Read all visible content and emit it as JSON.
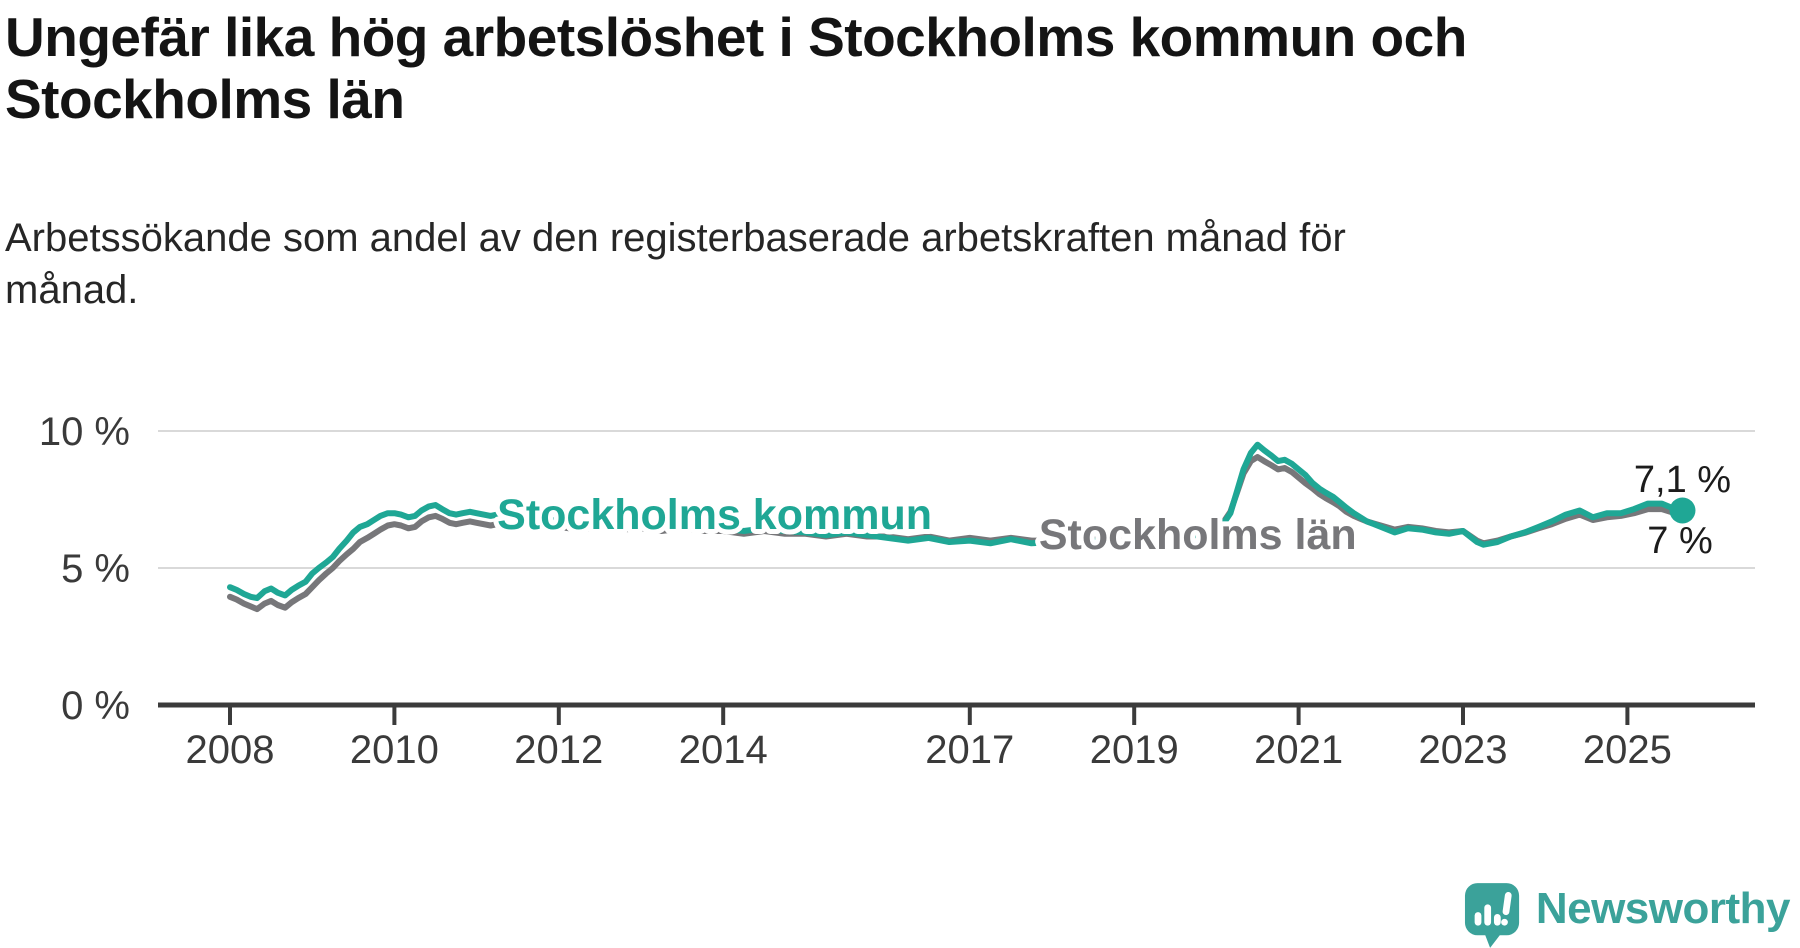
{
  "header": {
    "title_lines": [
      "Ungefär lika hög arbetslöshet i Stockholms kommun och",
      "Stockholms län"
    ],
    "subtitle_lines": [
      "Arbetssökande som andel av den registerbaserade arbetskraften månad för",
      "månad."
    ]
  },
  "logo": {
    "text": "Newsworthy",
    "color": "#3ba29a"
  },
  "chart_data": {
    "type": "line",
    "title": "Ungefär lika hög arbetslöshet i Stockholms kommun och Stockholms län",
    "subtitle": "Arbetssökande som andel av den registerbaserade arbetskraften månad för månad.",
    "xlabel": "",
    "ylabel": "",
    "ylim": [
      0,
      10
    ],
    "xlim": [
      2007.1,
      2026.5
    ],
    "grid": "horizontal",
    "legend_position": "inline-labels",
    "colors": {
      "grid": "#d9d9d9",
      "axis": "#3b3b3b",
      "kommun": "#1fa795",
      "lan": "#77777a"
    },
    "y_gridlines": [
      5,
      10
    ],
    "y_ticks": [
      {
        "value": 10,
        "label": "10 %"
      },
      {
        "value": 5,
        "label": "5 %"
      },
      {
        "value": 0,
        "label": "0 %"
      }
    ],
    "x_ticks": [
      {
        "value": 2008,
        "label": "2008"
      },
      {
        "value": 2010,
        "label": "2010"
      },
      {
        "value": 2012,
        "label": "2012"
      },
      {
        "value": 2014,
        "label": "2014"
      },
      {
        "value": 2017,
        "label": "2017"
      },
      {
        "value": 2019,
        "label": "2019"
      },
      {
        "value": 2021,
        "label": "2021"
      },
      {
        "value": 2023,
        "label": "2023"
      },
      {
        "value": 2025,
        "label": "2025"
      }
    ],
    "end_labels": [
      {
        "text": "7,1 %",
        "x": 2025.67,
        "y": 7.77,
        "anchor": "middle"
      },
      {
        "text": "7 %",
        "x": 2025.64,
        "y": 5.55,
        "anchor": "middle"
      }
    ],
    "series": [
      {
        "id": "lan",
        "name": "Stockholms län",
        "color": "#77777a",
        "end_marker": false,
        "label_pos": [
          2017.84,
          5.69
        ],
        "points": [
          [
            2008.0,
            3.95
          ],
          [
            2008.08,
            3.85
          ],
          [
            2008.17,
            3.7
          ],
          [
            2008.25,
            3.6
          ],
          [
            2008.33,
            3.5
          ],
          [
            2008.42,
            3.7
          ],
          [
            2008.5,
            3.8
          ],
          [
            2008.58,
            3.65
          ],
          [
            2008.67,
            3.55
          ],
          [
            2008.75,
            3.75
          ],
          [
            2008.83,
            3.9
          ],
          [
            2008.92,
            4.05
          ],
          [
            2009.0,
            4.3
          ],
          [
            2009.08,
            4.55
          ],
          [
            2009.17,
            4.8
          ],
          [
            2009.25,
            5.0
          ],
          [
            2009.33,
            5.25
          ],
          [
            2009.42,
            5.5
          ],
          [
            2009.5,
            5.7
          ],
          [
            2009.58,
            5.95
          ],
          [
            2009.67,
            6.1
          ],
          [
            2009.75,
            6.25
          ],
          [
            2009.83,
            6.4
          ],
          [
            2009.92,
            6.55
          ],
          [
            2010.0,
            6.6
          ],
          [
            2010.08,
            6.55
          ],
          [
            2010.17,
            6.45
          ],
          [
            2010.25,
            6.5
          ],
          [
            2010.33,
            6.7
          ],
          [
            2010.42,
            6.85
          ],
          [
            2010.5,
            6.9
          ],
          [
            2010.58,
            6.8
          ],
          [
            2010.67,
            6.65
          ],
          [
            2010.75,
            6.6
          ],
          [
            2010.83,
            6.65
          ],
          [
            2010.92,
            6.7
          ],
          [
            2011.0,
            6.65
          ],
          [
            2011.17,
            6.55
          ],
          [
            2011.33,
            6.65
          ],
          [
            2011.5,
            6.75
          ],
          [
            2011.67,
            6.55
          ],
          [
            2011.83,
            6.45
          ],
          [
            2012.0,
            6.5
          ],
          [
            2012.25,
            6.4
          ],
          [
            2012.5,
            6.5
          ],
          [
            2012.75,
            6.4
          ],
          [
            2013.0,
            6.45
          ],
          [
            2013.25,
            6.35
          ],
          [
            2013.5,
            6.45
          ],
          [
            2013.75,
            6.35
          ],
          [
            2014.0,
            6.35
          ],
          [
            2014.25,
            6.25
          ],
          [
            2014.5,
            6.35
          ],
          [
            2014.75,
            6.25
          ],
          [
            2015.0,
            6.25
          ],
          [
            2015.25,
            6.15
          ],
          [
            2015.5,
            6.25
          ],
          [
            2015.75,
            6.15
          ],
          [
            2016.0,
            6.15
          ],
          [
            2016.25,
            6.05
          ],
          [
            2016.5,
            6.15
          ],
          [
            2016.75,
            6.0
          ],
          [
            2017.0,
            6.1
          ],
          [
            2017.25,
            6.0
          ],
          [
            2017.5,
            6.1
          ],
          [
            2017.75,
            6.0
          ],
          [
            2018.0,
            6.0
          ],
          [
            2018.25,
            5.95
          ],
          [
            2018.5,
            6.05
          ],
          [
            2018.75,
            5.95
          ],
          [
            2019.0,
            6.05
          ],
          [
            2019.25,
            6.05
          ],
          [
            2019.5,
            6.2
          ],
          [
            2019.75,
            6.25
          ],
          [
            2020.0,
            6.45
          ],
          [
            2020.08,
            6.65
          ],
          [
            2020.17,
            7.05
          ],
          [
            2020.25,
            7.75
          ],
          [
            2020.33,
            8.45
          ],
          [
            2020.42,
            8.9
          ],
          [
            2020.5,
            9.05
          ],
          [
            2020.58,
            8.9
          ],
          [
            2020.67,
            8.75
          ],
          [
            2020.75,
            8.6
          ],
          [
            2020.83,
            8.65
          ],
          [
            2020.92,
            8.5
          ],
          [
            2021.0,
            8.3
          ],
          [
            2021.08,
            8.1
          ],
          [
            2021.17,
            7.9
          ],
          [
            2021.25,
            7.7
          ],
          [
            2021.33,
            7.55
          ],
          [
            2021.42,
            7.4
          ],
          [
            2021.5,
            7.25
          ],
          [
            2021.58,
            7.05
          ],
          [
            2021.67,
            6.9
          ],
          [
            2021.75,
            6.8
          ],
          [
            2021.83,
            6.7
          ],
          [
            2021.92,
            6.62
          ],
          [
            2022.0,
            6.55
          ],
          [
            2022.17,
            6.4
          ],
          [
            2022.33,
            6.5
          ],
          [
            2022.5,
            6.45
          ],
          [
            2022.67,
            6.35
          ],
          [
            2022.83,
            6.3
          ],
          [
            2023.0,
            6.35
          ],
          [
            2023.17,
            6.0
          ],
          [
            2023.25,
            5.9
          ],
          [
            2023.42,
            6.0
          ],
          [
            2023.58,
            6.15
          ],
          [
            2023.75,
            6.28
          ],
          [
            2023.92,
            6.45
          ],
          [
            2024.08,
            6.6
          ],
          [
            2024.25,
            6.8
          ],
          [
            2024.42,
            6.95
          ],
          [
            2024.58,
            6.75
          ],
          [
            2024.75,
            6.85
          ],
          [
            2024.92,
            6.9
          ],
          [
            2025.08,
            7.0
          ],
          [
            2025.25,
            7.15
          ],
          [
            2025.42,
            7.15
          ],
          [
            2025.58,
            7.0
          ],
          [
            2025.67,
            7.0
          ]
        ],
        "latest_value_label": "7 %"
      },
      {
        "id": "kommun",
        "name": "Stockholms kommun",
        "color": "#1fa795",
        "end_marker": true,
        "label_pos": [
          2011.25,
          6.42
        ],
        "points": [
          [
            2008.0,
            4.3
          ],
          [
            2008.08,
            4.2
          ],
          [
            2008.17,
            4.05
          ],
          [
            2008.25,
            3.95
          ],
          [
            2008.33,
            3.9
          ],
          [
            2008.42,
            4.15
          ],
          [
            2008.5,
            4.25
          ],
          [
            2008.58,
            4.1
          ],
          [
            2008.67,
            4.0
          ],
          [
            2008.75,
            4.2
          ],
          [
            2008.83,
            4.35
          ],
          [
            2008.92,
            4.5
          ],
          [
            2009.0,
            4.8
          ],
          [
            2009.08,
            5.0
          ],
          [
            2009.17,
            5.2
          ],
          [
            2009.25,
            5.4
          ],
          [
            2009.33,
            5.7
          ],
          [
            2009.42,
            6.0
          ],
          [
            2009.5,
            6.3
          ],
          [
            2009.58,
            6.5
          ],
          [
            2009.67,
            6.6
          ],
          [
            2009.75,
            6.75
          ],
          [
            2009.83,
            6.9
          ],
          [
            2009.92,
            7.0
          ],
          [
            2010.0,
            7.0
          ],
          [
            2010.08,
            6.95
          ],
          [
            2010.17,
            6.85
          ],
          [
            2010.25,
            6.9
          ],
          [
            2010.33,
            7.1
          ],
          [
            2010.42,
            7.25
          ],
          [
            2010.5,
            7.3
          ],
          [
            2010.58,
            7.15
          ],
          [
            2010.67,
            7.0
          ],
          [
            2010.75,
            6.95
          ],
          [
            2010.83,
            7.0
          ],
          [
            2010.92,
            7.05
          ],
          [
            2011.0,
            7.0
          ],
          [
            2011.17,
            6.9
          ],
          [
            2011.33,
            7.0
          ],
          [
            2011.5,
            7.1
          ],
          [
            2011.67,
            6.9
          ],
          [
            2011.83,
            6.8
          ],
          [
            2012.0,
            6.7
          ],
          [
            2012.25,
            6.6
          ],
          [
            2012.5,
            6.7
          ],
          [
            2012.75,
            6.6
          ],
          [
            2013.0,
            6.6
          ],
          [
            2013.25,
            6.5
          ],
          [
            2013.5,
            6.6
          ],
          [
            2013.75,
            6.5
          ],
          [
            2014.0,
            6.45
          ],
          [
            2014.25,
            6.35
          ],
          [
            2014.5,
            6.45
          ],
          [
            2014.75,
            6.35
          ],
          [
            2015.0,
            6.3
          ],
          [
            2015.25,
            6.2
          ],
          [
            2015.5,
            6.3
          ],
          [
            2015.75,
            6.2
          ],
          [
            2016.0,
            6.1
          ],
          [
            2016.25,
            6.0
          ],
          [
            2016.5,
            6.1
          ],
          [
            2016.75,
            5.95
          ],
          [
            2017.0,
            6.0
          ],
          [
            2017.25,
            5.9
          ],
          [
            2017.5,
            6.05
          ],
          [
            2017.75,
            5.9
          ],
          [
            2018.0,
            5.95
          ],
          [
            2018.25,
            5.85
          ],
          [
            2018.5,
            6.0
          ],
          [
            2018.75,
            5.9
          ],
          [
            2019.0,
            6.0
          ],
          [
            2019.25,
            6.0
          ],
          [
            2019.5,
            6.15
          ],
          [
            2019.75,
            6.2
          ],
          [
            2020.0,
            6.4
          ],
          [
            2020.08,
            6.6
          ],
          [
            2020.17,
            7.0
          ],
          [
            2020.25,
            7.8
          ],
          [
            2020.33,
            8.6
          ],
          [
            2020.42,
            9.2
          ],
          [
            2020.5,
            9.5
          ],
          [
            2020.58,
            9.3
          ],
          [
            2020.67,
            9.1
          ],
          [
            2020.75,
            8.9
          ],
          [
            2020.83,
            8.95
          ],
          [
            2020.92,
            8.8
          ],
          [
            2021.0,
            8.6
          ],
          [
            2021.08,
            8.4
          ],
          [
            2021.17,
            8.1
          ],
          [
            2021.25,
            7.9
          ],
          [
            2021.33,
            7.75
          ],
          [
            2021.42,
            7.6
          ],
          [
            2021.5,
            7.4
          ],
          [
            2021.58,
            7.2
          ],
          [
            2021.67,
            7.0
          ],
          [
            2021.75,
            6.85
          ],
          [
            2021.83,
            6.7
          ],
          [
            2021.92,
            6.6
          ],
          [
            2022.0,
            6.5
          ],
          [
            2022.17,
            6.3
          ],
          [
            2022.33,
            6.45
          ],
          [
            2022.5,
            6.4
          ],
          [
            2022.67,
            6.3
          ],
          [
            2022.83,
            6.25
          ],
          [
            2023.0,
            6.35
          ],
          [
            2023.17,
            5.95
          ],
          [
            2023.25,
            5.85
          ],
          [
            2023.42,
            5.95
          ],
          [
            2023.58,
            6.15
          ],
          [
            2023.75,
            6.3
          ],
          [
            2023.92,
            6.5
          ],
          [
            2024.08,
            6.7
          ],
          [
            2024.25,
            6.95
          ],
          [
            2024.42,
            7.1
          ],
          [
            2024.58,
            6.85
          ],
          [
            2024.75,
            7.0
          ],
          [
            2024.92,
            7.0
          ],
          [
            2025.08,
            7.15
          ],
          [
            2025.25,
            7.35
          ],
          [
            2025.42,
            7.35
          ],
          [
            2025.58,
            7.15
          ],
          [
            2025.67,
            7.1
          ]
        ],
        "latest_value_label": "7,1 %"
      }
    ]
  }
}
